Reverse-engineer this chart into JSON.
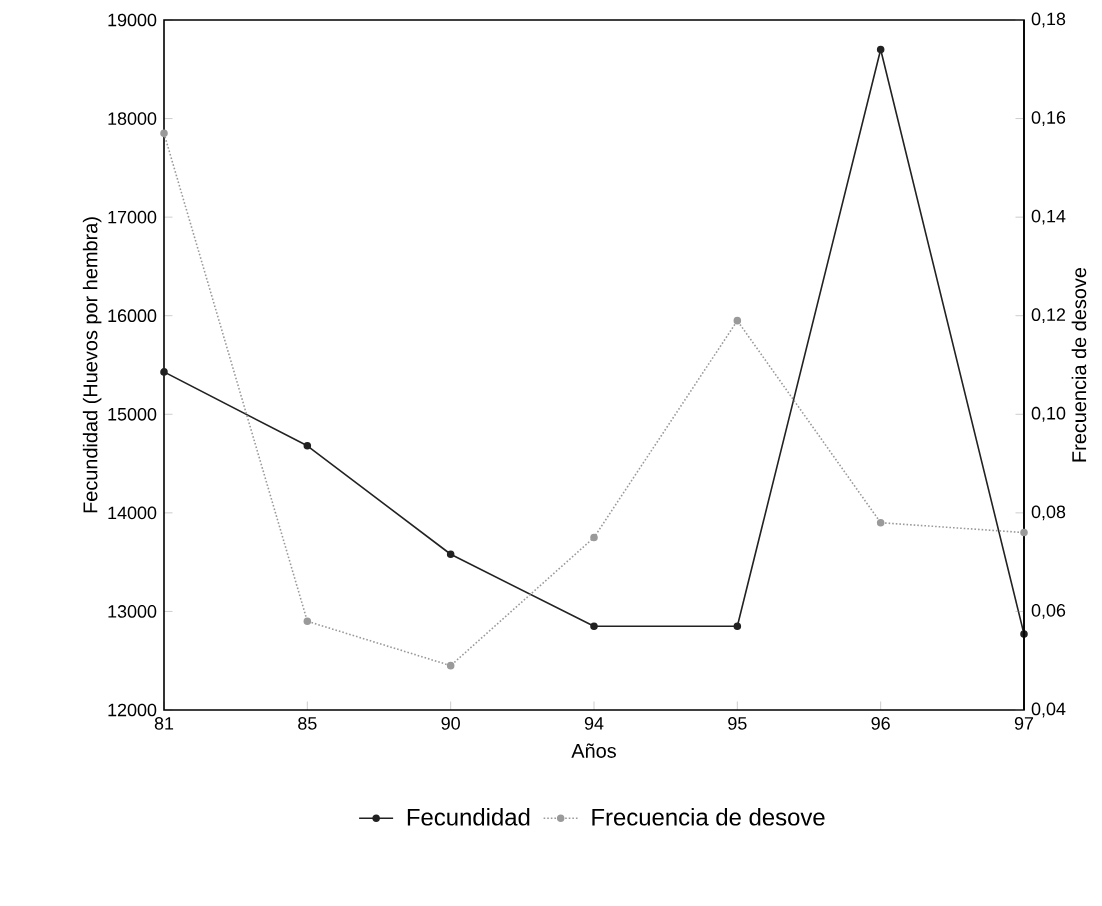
{
  "chart_data": {
    "type": "line",
    "xlabel": "Años",
    "ylabel": "Fecundidad (Huevos por hembra)",
    "y2label": "Frecuencia de desove",
    "categories": [
      "81",
      "85",
      "90",
      "94",
      "95",
      "96",
      "97"
    ],
    "series": [
      {
        "name": "Fecundidad",
        "color": "#222222",
        "values": [
          15430,
          14680,
          13580,
          12850,
          12850,
          18700,
          12770
        ],
        "line_style": "solid"
      },
      {
        "name": "Frecuencia de desove",
        "color": "#9a9a9a",
        "values": [
          0.157,
          0.058,
          0.049,
          0.075,
          0.119,
          0.078,
          0.076
        ],
        "axis": "y2",
        "line_style": "dotted"
      }
    ],
    "ylim": [
      12000,
      19000
    ],
    "yticks": [
      12000,
      13000,
      14000,
      15000,
      16000,
      17000,
      18000,
      19000
    ],
    "y2lim": [
      0.04,
      0.18
    ],
    "y2ticks": [
      {
        "value": 0.04,
        "label": "0,04"
      },
      {
        "value": 0.06,
        "label": "0,06"
      },
      {
        "value": 0.08,
        "label": "0,08"
      },
      {
        "value": 0.1,
        "label": "0,10"
      },
      {
        "value": 0.12,
        "label": "0,12"
      },
      {
        "value": 0.14,
        "label": "0,14"
      },
      {
        "value": 0.16,
        "label": "0,16"
      },
      {
        "value": 0.18,
        "label": "0,18"
      }
    ],
    "marker": "circle",
    "grid": false,
    "legend": "bottom"
  }
}
